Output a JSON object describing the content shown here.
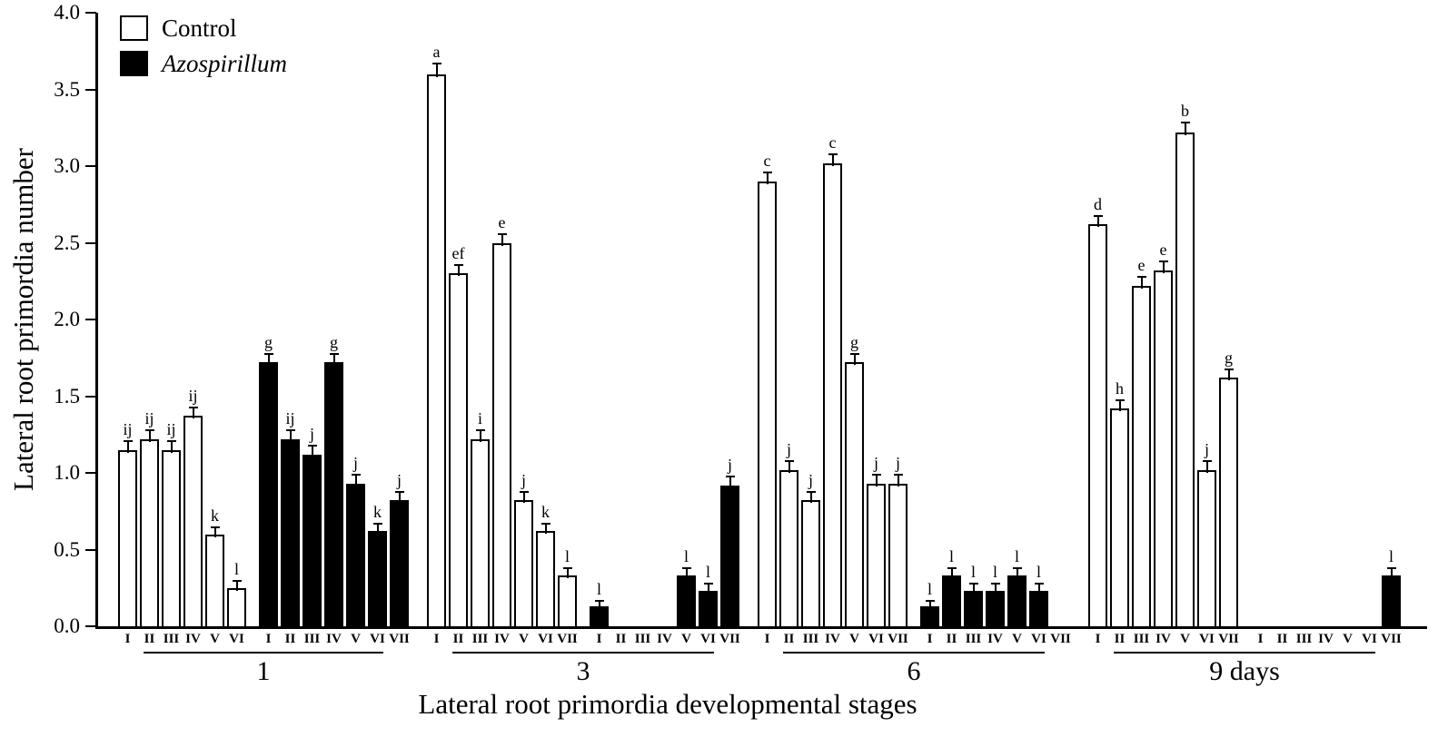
{
  "chart_data": {
    "type": "bar",
    "title": "",
    "xlabel": "Lateral root primordia developmental stages",
    "ylabel": "Lateral root primordia number",
    "ylim": [
      0,
      4.0
    ],
    "ytick_step": 0.5,
    "ytick_labels": [
      "0.0",
      "0.5",
      "1.0",
      "1.5",
      "2.0",
      "2.5",
      "3.0",
      "3.5",
      "4.0"
    ],
    "grid": false,
    "error_bars": true,
    "legend_position": "top-left",
    "colors": {
      "control_fill": "#ffffff",
      "azospirillum_fill": "#000000",
      "outline": "#000000",
      "background": "#ffffff"
    },
    "legend": [
      {
        "name": "Control",
        "fill": "#ffffff",
        "italic": false
      },
      {
        "name": "Azospirillum",
        "fill": "#000000",
        "italic": true
      }
    ],
    "groups": [
      {
        "label": "1",
        "subgroups": [
          {
            "series": "Control",
            "bars": [
              {
                "stage": "I",
                "value": 1.15,
                "err": 0.05,
                "sig": "ij"
              },
              {
                "stage": "II",
                "value": 1.22,
                "err": 0.05,
                "sig": "ij"
              },
              {
                "stage": "III",
                "value": 1.15,
                "err": 0.05,
                "sig": "ij"
              },
              {
                "stage": "IV",
                "value": 1.37,
                "err": 0.05,
                "sig": "ij"
              },
              {
                "stage": "V",
                "value": 0.6,
                "err": 0.04,
                "sig": "k"
              },
              {
                "stage": "VI",
                "value": 0.25,
                "err": 0.04,
                "sig": "l"
              }
            ]
          },
          {
            "series": "Azospirillum",
            "bars": [
              {
                "stage": "I",
                "value": 1.72,
                "err": 0.05,
                "sig": "g"
              },
              {
                "stage": "II",
                "value": 1.22,
                "err": 0.05,
                "sig": "ij"
              },
              {
                "stage": "III",
                "value": 1.12,
                "err": 0.05,
                "sig": "j"
              },
              {
                "stage": "IV",
                "value": 1.72,
                "err": 0.05,
                "sig": "g"
              },
              {
                "stage": "V",
                "value": 0.93,
                "err": 0.05,
                "sig": "j"
              },
              {
                "stage": "VI",
                "value": 0.62,
                "err": 0.04,
                "sig": "k"
              },
              {
                "stage": "VII",
                "value": 0.82,
                "err": 0.05,
                "sig": "j"
              }
            ]
          }
        ]
      },
      {
        "label": "3",
        "subgroups": [
          {
            "series": "Control",
            "bars": [
              {
                "stage": "I",
                "value": 3.6,
                "err": 0.06,
                "sig": "a"
              },
              {
                "stage": "II",
                "value": 2.3,
                "err": 0.05,
                "sig": "ef"
              },
              {
                "stage": "III",
                "value": 1.22,
                "err": 0.05,
                "sig": "i"
              },
              {
                "stage": "IV",
                "value": 2.5,
                "err": 0.05,
                "sig": "e"
              },
              {
                "stage": "V",
                "value": 0.82,
                "err": 0.05,
                "sig": "j"
              },
              {
                "stage": "VI",
                "value": 0.62,
                "err": 0.04,
                "sig": "k"
              },
              {
                "stage": "VII",
                "value": 0.33,
                "err": 0.04,
                "sig": "l"
              }
            ]
          },
          {
            "series": "Azospirillum",
            "bars": [
              {
                "stage": "I",
                "value": 0.13,
                "err": 0.03,
                "sig": "l"
              },
              {
                "stage": "II",
                "value": 0,
                "err": 0,
                "sig": ""
              },
              {
                "stage": "III",
                "value": 0,
                "err": 0,
                "sig": ""
              },
              {
                "stage": "IV",
                "value": 0,
                "err": 0,
                "sig": ""
              },
              {
                "stage": "V",
                "value": 0.33,
                "err": 0.04,
                "sig": "l"
              },
              {
                "stage": "VI",
                "value": 0.23,
                "err": 0.04,
                "sig": "l"
              },
              {
                "stage": "VII",
                "value": 0.92,
                "err": 0.05,
                "sig": "j"
              }
            ]
          }
        ]
      },
      {
        "label": "6",
        "subgroups": [
          {
            "series": "Control",
            "bars": [
              {
                "stage": "I",
                "value": 2.9,
                "err": 0.05,
                "sig": "c"
              },
              {
                "stage": "II",
                "value": 1.02,
                "err": 0.05,
                "sig": "j"
              },
              {
                "stage": "III",
                "value": 0.82,
                "err": 0.05,
                "sig": "j"
              },
              {
                "stage": "IV",
                "value": 3.02,
                "err": 0.05,
                "sig": "c"
              },
              {
                "stage": "V",
                "value": 1.72,
                "err": 0.05,
                "sig": "g"
              },
              {
                "stage": "VI",
                "value": 0.93,
                "err": 0.05,
                "sig": "j"
              },
              {
                "stage": "VII",
                "value": 0.93,
                "err": 0.05,
                "sig": "j"
              }
            ]
          },
          {
            "series": "Azospirillum",
            "bars": [
              {
                "stage": "I",
                "value": 0.13,
                "err": 0.03,
                "sig": "l"
              },
              {
                "stage": "II",
                "value": 0.33,
                "err": 0.04,
                "sig": "l"
              },
              {
                "stage": "III",
                "value": 0.23,
                "err": 0.04,
                "sig": "l"
              },
              {
                "stage": "IV",
                "value": 0.23,
                "err": 0.04,
                "sig": "l"
              },
              {
                "stage": "V",
                "value": 0.33,
                "err": 0.04,
                "sig": "l"
              },
              {
                "stage": "VI",
                "value": 0.23,
                "err": 0.04,
                "sig": "l"
              },
              {
                "stage": "VII",
                "value": 0,
                "err": 0,
                "sig": ""
              }
            ]
          }
        ]
      },
      {
        "label": "9 days",
        "subgroups": [
          {
            "series": "Control",
            "bars": [
              {
                "stage": "I",
                "value": 2.62,
                "err": 0.05,
                "sig": "d"
              },
              {
                "stage": "II",
                "value": 1.42,
                "err": 0.05,
                "sig": "h"
              },
              {
                "stage": "III",
                "value": 2.22,
                "err": 0.05,
                "sig": "e"
              },
              {
                "stage": "IV",
                "value": 2.32,
                "err": 0.05,
                "sig": "e"
              },
              {
                "stage": "V",
                "value": 3.22,
                "err": 0.06,
                "sig": "b"
              },
              {
                "stage": "VI",
                "value": 1.02,
                "err": 0.05,
                "sig": "j"
              },
              {
                "stage": "VII",
                "value": 1.62,
                "err": 0.05,
                "sig": "g"
              }
            ]
          },
          {
            "series": "Azospirillum",
            "bars": [
              {
                "stage": "I",
                "value": 0,
                "err": 0,
                "sig": ""
              },
              {
                "stage": "II",
                "value": 0,
                "err": 0,
                "sig": ""
              },
              {
                "stage": "III",
                "value": 0,
                "err": 0,
                "sig": ""
              },
              {
                "stage": "IV",
                "value": 0,
                "err": 0,
                "sig": ""
              },
              {
                "stage": "V",
                "value": 0,
                "err": 0,
                "sig": ""
              },
              {
                "stage": "VI",
                "value": 0,
                "err": 0,
                "sig": ""
              },
              {
                "stage": "VII",
                "value": 0.33,
                "err": 0.04,
                "sig": "l"
              }
            ]
          }
        ]
      }
    ]
  }
}
